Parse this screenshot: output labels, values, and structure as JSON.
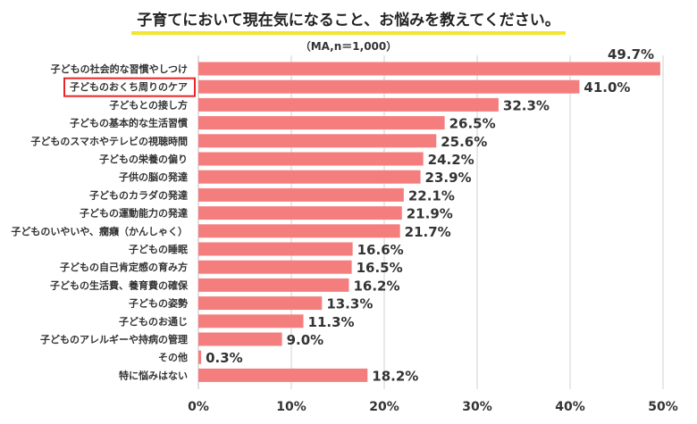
{
  "header": {
    "title": "子育てにおいて現在気になること、お悩みを教えてください。",
    "subtitle": "（MA,n＝1,000）"
  },
  "colors": {
    "bar": "#f47e7e",
    "highlight_text": "#e8262a",
    "highlight_box": "#e8262a",
    "grid": "#d0d0d0",
    "title_underline": "#f2e52e"
  },
  "chart_data": {
    "type": "bar",
    "orientation": "horizontal",
    "title": "子育てにおいて現在気になること、お悩みを教えてください。",
    "subtitle": "（MA,n＝1,000）",
    "xlim": [
      0,
      50
    ],
    "x_ticks": [
      "0%",
      "10%",
      "20%",
      "30%",
      "40%",
      "50%"
    ],
    "grid": true,
    "highlighted_category": "子どものおくち周りのケア",
    "categories": [
      "子どもの社会的な習慣やしつけ",
      "子どものおくち周りのケア",
      "子どもとの接し方",
      "子どもの基本的な生活習慣",
      "子どものスマホやテレビの視聴時間",
      "子どもの栄養の偏り",
      "子供の脳の発達",
      "子どものカラダの発達",
      "子どもの運動能力の発達",
      "子どものいやいや、癇癪（かんしゃく）",
      "子どもの睡眠",
      "子どもの自己肯定感の育み方",
      "子どもの生活費、養育費の確保",
      "子どもの姿勢",
      "子どものお通じ",
      "子どものアレルギーや持病の管理",
      "その他",
      "特に悩みはない"
    ],
    "values": [
      49.7,
      41.0,
      32.3,
      26.5,
      25.6,
      24.2,
      23.9,
      22.1,
      21.9,
      21.7,
      16.6,
      16.5,
      16.2,
      13.3,
      11.3,
      9.0,
      0.3,
      18.2
    ],
    "value_labels": [
      "49.7%",
      "41.0%",
      "32.3%",
      "26.5%",
      "25.6%",
      "24.2%",
      "23.9%",
      "22.1%",
      "21.9%",
      "21.7%",
      "16.6%",
      "16.5%",
      "16.2%",
      "13.3%",
      "11.3%",
      "9.0%",
      "0.3%",
      "18.2%"
    ]
  }
}
